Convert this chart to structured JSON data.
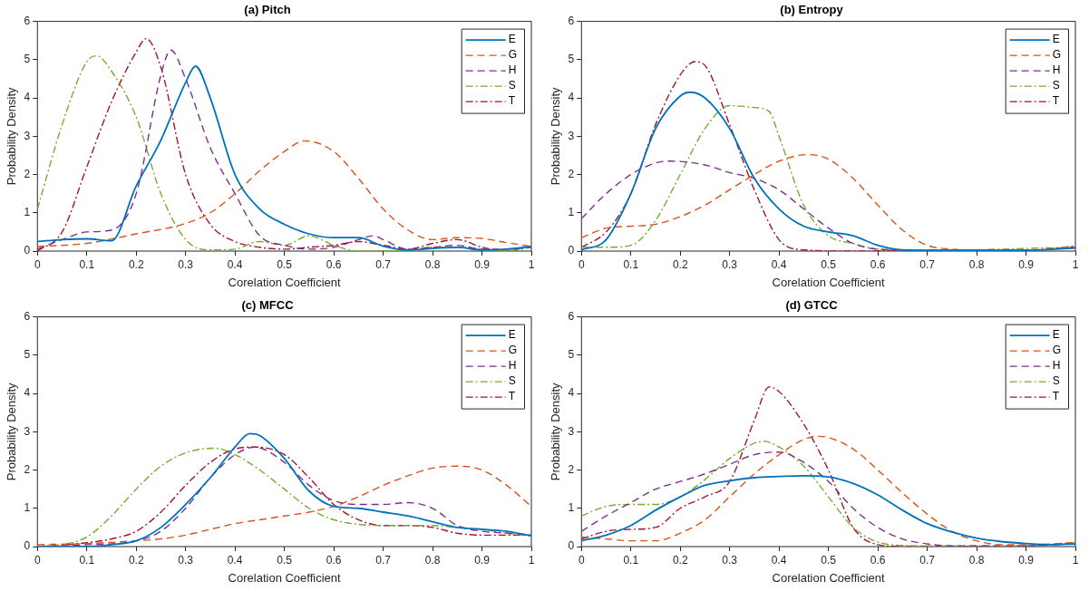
{
  "chart_data": [
    {
      "type": "line",
      "title": "(a) Pitch",
      "xlabel": "Corelation Coefficient",
      "ylabel": "Probability Density",
      "xlim": [
        0,
        1
      ],
      "ylim": [
        0,
        6
      ],
      "xticks": [
        0,
        0.1,
        0.2,
        0.3,
        0.4,
        0.5,
        0.6,
        0.7,
        0.8,
        0.9,
        1
      ],
      "yticks": [
        0,
        1,
        2,
        3,
        4,
        5,
        6
      ],
      "grid": false,
      "legend": "top right",
      "marker": "none",
      "series": [
        {
          "name": "E",
          "color": "#0072bd",
          "line_style": "solid",
          "x": [
            0,
            0.05,
            0.1,
            0.15,
            0.2,
            0.25,
            0.3,
            0.32,
            0.35,
            0.4,
            0.45,
            0.5,
            0.55,
            0.6,
            0.65,
            0.7,
            0.75,
            0.8,
            0.85,
            0.9,
            0.95,
            1
          ],
          "values": [
            0.25,
            0.3,
            0.32,
            0.27,
            1.7,
            2.9,
            4.4,
            4.83,
            4.0,
            2.0,
            1.1,
            0.7,
            0.45,
            0.35,
            0.35,
            0.13,
            0.03,
            0.07,
            0.1,
            0.03,
            0.05,
            0.12
          ]
        },
        {
          "name": "G",
          "color": "#d95319",
          "line_style": "dashed",
          "x": [
            0,
            0.1,
            0.2,
            0.3,
            0.35,
            0.4,
            0.45,
            0.5,
            0.54,
            0.6,
            0.65,
            0.7,
            0.75,
            0.8,
            0.85,
            0.9,
            0.95,
            1
          ],
          "values": [
            0.12,
            0.2,
            0.45,
            0.72,
            1.0,
            1.5,
            2.1,
            2.6,
            2.88,
            2.6,
            1.9,
            1.1,
            0.55,
            0.3,
            0.35,
            0.33,
            0.22,
            0.12
          ]
        },
        {
          "name": "H",
          "color": "#7e2f8e",
          "line_style": "dashed",
          "x": [
            0,
            0.05,
            0.1,
            0.15,
            0.2,
            0.25,
            0.27,
            0.3,
            0.35,
            0.4,
            0.45,
            0.5,
            0.55,
            0.6,
            0.65,
            0.68,
            0.7,
            0.75,
            0.8,
            0.85,
            0.9,
            0.95,
            1
          ],
          "values": [
            0.05,
            0.3,
            0.5,
            0.55,
            1.5,
            4.6,
            5.25,
            4.5,
            2.7,
            1.5,
            0.4,
            0.15,
            0.05,
            0.1,
            0.3,
            0.4,
            0.3,
            0.05,
            0.1,
            0.15,
            0.05,
            0.05,
            0.1
          ]
        },
        {
          "name": "S",
          "color": "#77ac30",
          "line_style": "dashdot",
          "x": [
            0,
            0.05,
            0.1,
            0.12,
            0.15,
            0.2,
            0.25,
            0.3,
            0.35,
            0.4,
            0.45,
            0.5,
            0.55,
            0.6,
            0.65,
            0.7,
            0.75,
            0.8,
            0.85,
            0.9,
            0.95,
            1
          ],
          "values": [
            1.1,
            3.3,
            4.95,
            5.1,
            4.7,
            3.5,
            1.5,
            0.3,
            0.03,
            0.05,
            0.25,
            0.15,
            0.4,
            0.15,
            0,
            0,
            0.03,
            0.1,
            0.1,
            0.05,
            0,
            0.1
          ]
        },
        {
          "name": "T",
          "color": "#a2142f",
          "line_style": "dashdot",
          "x": [
            0,
            0.05,
            0.1,
            0.15,
            0.2,
            0.22,
            0.25,
            0.3,
            0.35,
            0.4,
            0.45,
            0.5,
            0.55,
            0.6,
            0.65,
            0.7,
            0.75,
            0.8,
            0.85,
            0.9,
            0.95,
            1
          ],
          "values": [
            0,
            0.5,
            2.2,
            3.9,
            5.2,
            5.55,
            4.8,
            2.0,
            0.7,
            0.25,
            0.1,
            0.05,
            0.1,
            0.15,
            0.25,
            0.15,
            0.05,
            0.2,
            0.3,
            0.1,
            0,
            0.12
          ]
        }
      ]
    },
    {
      "type": "line",
      "title": "(b) Entropy",
      "xlabel": "Corelation Coefficient",
      "ylabel": "Probability Density",
      "xlim": [
        0,
        1
      ],
      "ylim": [
        0,
        6
      ],
      "xticks": [
        0,
        0.1,
        0.2,
        0.3,
        0.4,
        0.5,
        0.6,
        0.7,
        0.8,
        0.9,
        1
      ],
      "yticks": [
        0,
        1,
        2,
        3,
        4,
        5,
        6
      ],
      "grid": false,
      "legend": "top right",
      "marker": "none",
      "series": [
        {
          "name": "E",
          "color": "#0072bd",
          "line_style": "solid",
          "x": [
            0,
            0.05,
            0.1,
            0.15,
            0.2,
            0.22,
            0.25,
            0.3,
            0.35,
            0.4,
            0.45,
            0.5,
            0.55,
            0.6,
            0.65,
            0.7,
            0.8,
            0.9,
            1
          ],
          "values": [
            0.03,
            0.3,
            1.5,
            3.2,
            4.05,
            4.15,
            4.0,
            3.2,
            1.9,
            1.1,
            0.65,
            0.5,
            0.4,
            0.15,
            0.03,
            0.02,
            0.02,
            0.02,
            0.08
          ]
        },
        {
          "name": "G",
          "color": "#d95319",
          "line_style": "dashed",
          "x": [
            0,
            0.05,
            0.1,
            0.15,
            0.2,
            0.25,
            0.3,
            0.35,
            0.4,
            0.46,
            0.5,
            0.55,
            0.6,
            0.65,
            0.7,
            0.75,
            0.8,
            0.9,
            1
          ],
          "values": [
            0.35,
            0.6,
            0.65,
            0.7,
            0.9,
            1.2,
            1.6,
            2.0,
            2.35,
            2.52,
            2.4,
            1.9,
            1.2,
            0.55,
            0.15,
            0.05,
            0.02,
            0.02,
            0.1
          ]
        },
        {
          "name": "H",
          "color": "#7e2f8e",
          "line_style": "dashed",
          "x": [
            0,
            0.05,
            0.1,
            0.15,
            0.18,
            0.25,
            0.3,
            0.35,
            0.4,
            0.45,
            0.5,
            0.55,
            0.6,
            0.7,
            0.8,
            0.9,
            1
          ],
          "values": [
            0.85,
            1.5,
            2.0,
            2.3,
            2.35,
            2.25,
            2.05,
            1.9,
            1.6,
            1.1,
            0.6,
            0.2,
            0.05,
            0.02,
            0.02,
            0.02,
            0.1
          ]
        },
        {
          "name": "S",
          "color": "#77ac30",
          "line_style": "dashdot",
          "x": [
            0,
            0.05,
            0.1,
            0.15,
            0.2,
            0.25,
            0.3,
            0.35,
            0.38,
            0.4,
            0.45,
            0.5,
            0.55,
            0.6,
            0.7,
            1
          ],
          "values": [
            0.1,
            0.1,
            0.15,
            0.8,
            2.0,
            3.2,
            3.8,
            3.75,
            3.65,
            3.0,
            1.2,
            0.4,
            0.2,
            0.05,
            0.02,
            0.1
          ]
        },
        {
          "name": "T",
          "color": "#a2142f",
          "line_style": "dashdot",
          "x": [
            0,
            0.05,
            0.1,
            0.15,
            0.2,
            0.23,
            0.25,
            0.3,
            0.35,
            0.4,
            0.45,
            0.55,
            0.7,
            0.8,
            0.9,
            1
          ],
          "values": [
            0.1,
            0.5,
            1.5,
            3.3,
            4.6,
            4.95,
            4.85,
            3.3,
            1.6,
            0.3,
            0.03,
            0,
            0.02,
            0.02,
            0.02,
            0.13
          ]
        }
      ]
    },
    {
      "type": "line",
      "title": "(c) MFCC",
      "xlabel": "Corelation Coefficient",
      "ylabel": "Probability Density",
      "xlim": [
        0,
        1
      ],
      "ylim": [
        0,
        6
      ],
      "xticks": [
        0,
        0.1,
        0.2,
        0.3,
        0.4,
        0.5,
        0.6,
        0.7,
        0.8,
        0.9,
        1
      ],
      "yticks": [
        0,
        1,
        2,
        3,
        4,
        5,
        6
      ],
      "grid": false,
      "legend": "top right",
      "marker": "none",
      "series": [
        {
          "name": "E",
          "color": "#0072bd",
          "line_style": "solid",
          "x": [
            0,
            0.1,
            0.15,
            0.2,
            0.25,
            0.3,
            0.35,
            0.4,
            0.43,
            0.45,
            0.5,
            0.55,
            0.6,
            0.65,
            0.7,
            0.75,
            0.8,
            0.85,
            0.9,
            0.95,
            1
          ],
          "values": [
            0,
            0,
            0.05,
            0.15,
            0.5,
            1.1,
            1.8,
            2.6,
            2.95,
            2.9,
            2.3,
            1.45,
            1.05,
            1.0,
            0.9,
            0.8,
            0.65,
            0.5,
            0.45,
            0.4,
            0.28
          ]
        },
        {
          "name": "G",
          "color": "#d95319",
          "line_style": "dashed",
          "x": [
            0,
            0.1,
            0.2,
            0.25,
            0.3,
            0.35,
            0.4,
            0.45,
            0.5,
            0.55,
            0.6,
            0.65,
            0.7,
            0.75,
            0.8,
            0.85,
            0.9,
            0.95,
            1
          ],
          "values": [
            0.05,
            0.08,
            0.15,
            0.2,
            0.3,
            0.45,
            0.6,
            0.7,
            0.8,
            0.9,
            1.05,
            1.3,
            1.6,
            1.85,
            2.05,
            2.1,
            2.0,
            1.6,
            1.05
          ]
        },
        {
          "name": "H",
          "color": "#7e2f8e",
          "line_style": "dashed",
          "x": [
            0,
            0.1,
            0.2,
            0.25,
            0.3,
            0.35,
            0.4,
            0.44,
            0.5,
            0.55,
            0.6,
            0.65,
            0.7,
            0.75,
            0.8,
            0.85,
            0.9,
            0.95,
            1
          ],
          "values": [
            0,
            0.05,
            0.15,
            0.4,
            1.0,
            1.8,
            2.4,
            2.6,
            2.2,
            1.6,
            1.2,
            1.1,
            1.1,
            1.15,
            1.0,
            0.55,
            0.4,
            0.35,
            0.3
          ]
        },
        {
          "name": "S",
          "color": "#77ac30",
          "line_style": "dashdot",
          "x": [
            0,
            0.05,
            0.1,
            0.15,
            0.2,
            0.25,
            0.3,
            0.36,
            0.4,
            0.45,
            0.5,
            0.55,
            0.6,
            0.65,
            0.7,
            0.75,
            0.8,
            0.85,
            0.9,
            0.95,
            1
          ],
          "values": [
            0,
            0.05,
            0.25,
            0.8,
            1.5,
            2.1,
            2.45,
            2.57,
            2.4,
            2.0,
            1.5,
            1.0,
            0.7,
            0.58,
            0.55,
            0.55,
            0.55,
            0.5,
            0.45,
            0.35,
            0.28
          ]
        },
        {
          "name": "T",
          "color": "#a2142f",
          "line_style": "dashdot",
          "x": [
            0,
            0.1,
            0.15,
            0.2,
            0.25,
            0.3,
            0.35,
            0.4,
            0.44,
            0.5,
            0.55,
            0.6,
            0.65,
            0.7,
            0.75,
            0.8,
            0.85,
            0.9,
            0.95,
            1
          ],
          "values": [
            0,
            0.1,
            0.2,
            0.4,
            0.9,
            1.6,
            2.2,
            2.55,
            2.6,
            2.4,
            1.8,
            1.1,
            0.7,
            0.55,
            0.55,
            0.5,
            0.35,
            0.3,
            0.3,
            0.3
          ]
        }
      ]
    },
    {
      "type": "line",
      "title": "(d) GTCC",
      "xlabel": "Corelation Coefficient",
      "ylabel": "Probability Density",
      "xlim": [
        0,
        1
      ],
      "ylim": [
        0,
        6
      ],
      "xticks": [
        0,
        0.1,
        0.2,
        0.3,
        0.4,
        0.5,
        0.6,
        0.7,
        0.8,
        0.9,
        1
      ],
      "yticks": [
        0,
        1,
        2,
        3,
        4,
        5,
        6
      ],
      "grid": false,
      "legend": "top right",
      "marker": "none",
      "series": [
        {
          "name": "E",
          "color": "#0072bd",
          "line_style": "solid",
          "x": [
            0,
            0.05,
            0.1,
            0.15,
            0.2,
            0.25,
            0.3,
            0.35,
            0.4,
            0.45,
            0.5,
            0.55,
            0.6,
            0.65,
            0.7,
            0.75,
            0.8,
            0.85,
            0.9,
            0.95,
            1
          ],
          "values": [
            0.15,
            0.3,
            0.55,
            0.95,
            1.3,
            1.6,
            1.72,
            1.8,
            1.83,
            1.85,
            1.82,
            1.65,
            1.35,
            0.95,
            0.6,
            0.38,
            0.22,
            0.13,
            0.08,
            0.05,
            0.07
          ]
        },
        {
          "name": "G",
          "color": "#d95319",
          "line_style": "dashed",
          "x": [
            0,
            0.05,
            0.1,
            0.15,
            0.2,
            0.25,
            0.3,
            0.35,
            0.4,
            0.45,
            0.48,
            0.5,
            0.55,
            0.6,
            0.65,
            0.7,
            0.75,
            0.8,
            0.85,
            0.9,
            1
          ],
          "values": [
            0.25,
            0.2,
            0.15,
            0.15,
            0.35,
            0.7,
            1.3,
            1.9,
            2.4,
            2.8,
            2.88,
            2.85,
            2.55,
            2.0,
            1.4,
            0.85,
            0.4,
            0.15,
            0.05,
            0.05,
            0.1
          ]
        },
        {
          "name": "H",
          "color": "#7e2f8e",
          "line_style": "dashed",
          "x": [
            0,
            0.05,
            0.1,
            0.15,
            0.2,
            0.25,
            0.3,
            0.35,
            0.4,
            0.45,
            0.5,
            0.55,
            0.6,
            0.65,
            0.7,
            0.75,
            0.8,
            0.9,
            1
          ],
          "values": [
            0.4,
            0.8,
            1.15,
            1.5,
            1.7,
            1.9,
            2.15,
            2.4,
            2.47,
            2.2,
            1.7,
            1.0,
            0.5,
            0.2,
            0.07,
            0.02,
            0.02,
            0.02,
            0.08
          ]
        },
        {
          "name": "S",
          "color": "#77ac30",
          "line_style": "dashdot",
          "x": [
            0,
            0.05,
            0.1,
            0.15,
            0.2,
            0.25,
            0.3,
            0.35,
            0.37,
            0.4,
            0.45,
            0.5,
            0.55,
            0.6,
            0.65,
            0.7,
            0.8,
            0.9,
            1
          ],
          "values": [
            0.8,
            1.05,
            1.1,
            1.1,
            1.3,
            1.75,
            2.3,
            2.7,
            2.75,
            2.6,
            2.1,
            1.3,
            0.5,
            0.12,
            0.03,
            0.02,
            0.02,
            0.02,
            0.1
          ]
        },
        {
          "name": "T",
          "color": "#a2142f",
          "line_style": "dashdot",
          "x": [
            0,
            0.05,
            0.1,
            0.15,
            0.2,
            0.25,
            0.3,
            0.35,
            0.38,
            0.4,
            0.45,
            0.5,
            0.55,
            0.6,
            0.65,
            0.7,
            0.8,
            0.9,
            1
          ],
          "values": [
            0.2,
            0.4,
            0.45,
            0.5,
            1.0,
            1.3,
            1.7,
            3.3,
            4.17,
            4.05,
            3.2,
            2.0,
            0.5,
            0.05,
            0,
            0,
            0,
            0.02,
            0.1
          ]
        }
      ]
    }
  ]
}
